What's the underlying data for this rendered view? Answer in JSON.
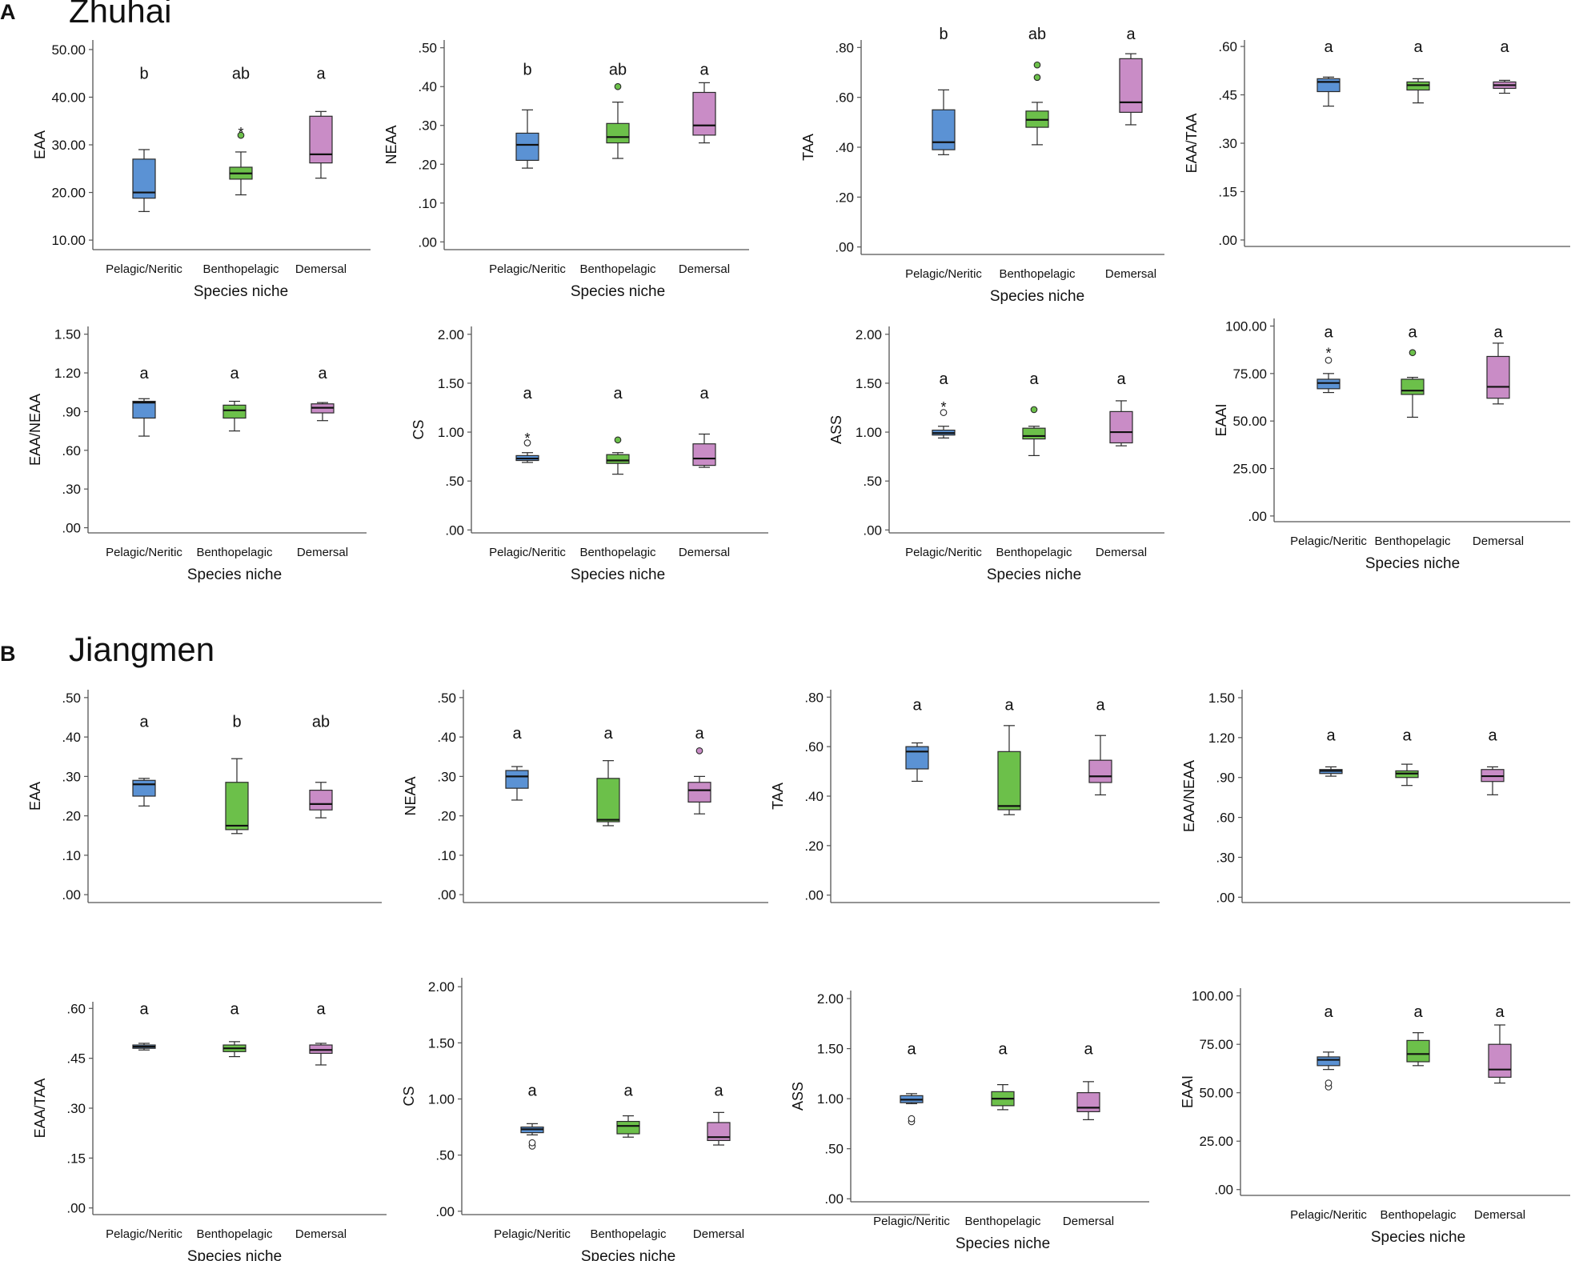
{
  "colors": {
    "pelagic": "#5b92d4",
    "bentho": "#6cc04a",
    "demersal": "#c98cc6",
    "stroke": "#2a2a2a",
    "axis": "#555555"
  },
  "sections": [
    {
      "letter": "A",
      "title": "Zhuhai"
    },
    {
      "letter": "B",
      "title": "Jiangmen"
    }
  ],
  "chart_data": [
    {
      "type": "box",
      "panel": "A",
      "ylabel": "EAA",
      "xlabel": "Species niche",
      "categories": [
        "Pelagic/Neritic",
        "Benthopelagic",
        "Demersal"
      ],
      "yticks": [
        "10.00",
        "20.00",
        "30.00",
        "40.00",
        "50.00"
      ],
      "ylim": [
        8,
        52
      ],
      "boxes": [
        {
          "min": 16,
          "q1": 18.8,
          "median": 20,
          "q3": 27,
          "max": 29,
          "outliers": []
        },
        {
          "min": 19.5,
          "q1": 22.8,
          "median": 24,
          "q3": 25.3,
          "max": 28.5,
          "outliers": [
            {
              "v": 32,
              "m": "o"
            },
            {
              "v": 33,
              "m": "*"
            }
          ]
        },
        {
          "min": 23,
          "q1": 26.2,
          "median": 28,
          "q3": 36,
          "max": 37,
          "outliers": []
        }
      ],
      "letters": [
        "b",
        "ab",
        "a"
      ],
      "sig_y": 45
    },
    {
      "type": "box",
      "panel": "A",
      "ylabel": "NEAA",
      "xlabel": "Species niche",
      "categories": [
        "Pelagic/Neritic",
        "Benthopelagic",
        "Demersal"
      ],
      "yticks": [
        ".00",
        ".10",
        ".20",
        ".30",
        ".40",
        ".50"
      ],
      "ylim": [
        -0.02,
        0.52
      ],
      "boxes": [
        {
          "min": 0.19,
          "q1": 0.21,
          "median": 0.25,
          "q3": 0.28,
          "max": 0.34,
          "outliers": []
        },
        {
          "min": 0.215,
          "q1": 0.255,
          "median": 0.27,
          "q3": 0.305,
          "max": 0.36,
          "outliers": [
            {
              "v": 0.4,
              "m": "o"
            }
          ]
        },
        {
          "min": 0.255,
          "q1": 0.275,
          "median": 0.3,
          "q3": 0.385,
          "max": 0.41,
          "outliers": []
        }
      ],
      "letters": [
        "b",
        "ab",
        "a"
      ],
      "sig_y": 0.445
    },
    {
      "type": "box",
      "panel": "A",
      "ylabel": "TAA",
      "xlabel": "Species niche",
      "categories": [
        "Pelagic/Neritic",
        "Benthopelagic",
        "Demersal"
      ],
      "yticks": [
        ".00",
        ".20",
        ".40",
        ".60",
        ".80"
      ],
      "ylim": [
        -0.03,
        0.83
      ],
      "boxes": [
        {
          "min": 0.37,
          "q1": 0.39,
          "median": 0.42,
          "q3": 0.55,
          "max": 0.63,
          "outliers": []
        },
        {
          "min": 0.41,
          "q1": 0.48,
          "median": 0.51,
          "q3": 0.545,
          "max": 0.58,
          "outliers": [
            {
              "v": 0.68,
              "m": "o"
            },
            {
              "v": 0.73,
              "m": "o"
            }
          ]
        },
        {
          "min": 0.49,
          "q1": 0.54,
          "median": 0.58,
          "q3": 0.755,
          "max": 0.775,
          "outliers": []
        }
      ],
      "letters": [
        "b",
        "ab",
        "a"
      ],
      "sig_y": 0.855
    },
    {
      "type": "box",
      "panel": "A",
      "ylabel": "EAA/TAA",
      "xlabel": "",
      "categories": [
        "",
        "",
        ""
      ],
      "yticks": [
        ".00",
        ".15",
        ".30",
        ".45",
        ".60"
      ],
      "ylim": [
        -0.02,
        0.62
      ],
      "boxes": [
        {
          "min": 0.415,
          "q1": 0.46,
          "median": 0.49,
          "q3": 0.5,
          "max": 0.505,
          "outliers": []
        },
        {
          "min": 0.425,
          "q1": 0.465,
          "median": 0.48,
          "q3": 0.49,
          "max": 0.5,
          "outliers": []
        },
        {
          "min": 0.455,
          "q1": 0.47,
          "median": 0.48,
          "q3": 0.49,
          "max": 0.495,
          "outliers": []
        }
      ],
      "letters": [
        "a",
        "a",
        "a"
      ],
      "sig_y": 0.6
    },
    {
      "type": "box",
      "panel": "A",
      "ylabel": "EAA/NEAA",
      "xlabel": "Species niche",
      "categories": [
        "Pelagic/Neritic",
        "Benthopelagic",
        "Demersal"
      ],
      "yticks": [
        ".00",
        ".30",
        ".60",
        ".90",
        "1.20",
        "1.50"
      ],
      "ylim": [
        -0.04,
        1.56
      ],
      "boxes": [
        {
          "min": 0.71,
          "q1": 0.85,
          "median": 0.97,
          "q3": 0.98,
          "max": 1.0,
          "outliers": []
        },
        {
          "min": 0.75,
          "q1": 0.85,
          "median": 0.91,
          "q3": 0.95,
          "max": 0.98,
          "outliers": []
        },
        {
          "min": 0.83,
          "q1": 0.89,
          "median": 0.93,
          "q3": 0.96,
          "max": 0.97,
          "outliers": []
        }
      ],
      "letters": [
        "a",
        "a",
        "a"
      ],
      "sig_y": 1.2
    },
    {
      "type": "box",
      "panel": "A",
      "ylabel": "CS",
      "xlabel": "Species niche",
      "categories": [
        "Pelagic/Neritic",
        "Benthopelagic",
        "Demersal"
      ],
      "yticks": [
        ".00",
        ".50",
        "1.00",
        "1.50",
        "2.00"
      ],
      "ylim": [
        -0.03,
        2.08
      ],
      "boxes": [
        {
          "min": 0.69,
          "q1": 0.71,
          "median": 0.73,
          "q3": 0.76,
          "max": 0.79,
          "outliers": [
            {
              "v": 0.89,
              "m": "o"
            },
            {
              "v": 0.96,
              "m": "*"
            }
          ]
        },
        {
          "min": 0.57,
          "q1": 0.68,
          "median": 0.71,
          "q3": 0.77,
          "max": 0.79,
          "outliers": [
            {
              "v": 0.92,
              "m": "o"
            }
          ]
        },
        {
          "min": 0.64,
          "q1": 0.66,
          "median": 0.73,
          "q3": 0.88,
          "max": 0.98,
          "outliers": []
        }
      ],
      "letters": [
        "a",
        "a",
        "a"
      ],
      "sig_y": 1.4
    },
    {
      "type": "box",
      "panel": "A",
      "ylabel": "ASS",
      "xlabel": "Species niche",
      "categories": [
        "Pelagic/Neritic",
        "Benthopelagic",
        "Demersal"
      ],
      "yticks": [
        ".00",
        ".50",
        "1.00",
        "1.50",
        "2.00"
      ],
      "ylim": [
        -0.03,
        2.08
      ],
      "boxes": [
        {
          "min": 0.94,
          "q1": 0.97,
          "median": 0.99,
          "q3": 1.02,
          "max": 1.06,
          "outliers": [
            {
              "v": 1.2,
              "m": "o"
            },
            {
              "v": 1.28,
              "m": "*"
            }
          ]
        },
        {
          "min": 0.76,
          "q1": 0.93,
          "median": 0.96,
          "q3": 1.04,
          "max": 1.06,
          "outliers": [
            {
              "v": 1.23,
              "m": "o"
            }
          ]
        },
        {
          "min": 0.86,
          "q1": 0.89,
          "median": 1.0,
          "q3": 1.21,
          "max": 1.32,
          "outliers": []
        }
      ],
      "letters": [
        "a",
        "a",
        "a"
      ],
      "sig_y": 1.55
    },
    {
      "type": "box",
      "panel": "A",
      "ylabel": "EAAI",
      "xlabel": "Species niche",
      "categories": [
        "Pelagic/Neritic",
        "Benthopelagic",
        "Demersal"
      ],
      "yticks": [
        ".00",
        "25.00",
        "50.00",
        "75.00",
        "100.00"
      ],
      "ylim": [
        -3,
        104
      ],
      "boxes": [
        {
          "min": 65,
          "q1": 67,
          "median": 70,
          "q3": 72,
          "max": 75,
          "outliers": [
            {
              "v": 82,
              "m": "o"
            },
            {
              "v": 87,
              "m": "*"
            }
          ]
        },
        {
          "min": 52,
          "q1": 64,
          "median": 66,
          "q3": 72,
          "max": 73,
          "outliers": [
            {
              "v": 86,
              "m": "o"
            }
          ]
        },
        {
          "min": 59,
          "q1": 62,
          "median": 68,
          "q3": 84,
          "max": 91,
          "outliers": []
        }
      ],
      "letters": [
        "a",
        "a",
        "a"
      ],
      "sig_y": 97
    },
    {
      "type": "box",
      "panel": "B",
      "ylabel": "EAA",
      "xlabel": "",
      "categories": [
        "",
        "",
        ""
      ],
      "yticks": [
        ".00",
        ".10",
        ".20",
        ".30",
        ".40",
        ".50"
      ],
      "ylim": [
        -0.02,
        0.52
      ],
      "boxes": [
        {
          "min": 0.225,
          "q1": 0.25,
          "median": 0.28,
          "q3": 0.29,
          "max": 0.295,
          "outliers": []
        },
        {
          "min": 0.155,
          "q1": 0.165,
          "median": 0.175,
          "q3": 0.285,
          "max": 0.345,
          "outliers": []
        },
        {
          "min": 0.195,
          "q1": 0.215,
          "median": 0.23,
          "q3": 0.265,
          "max": 0.285,
          "outliers": []
        }
      ],
      "letters": [
        "a",
        "b",
        "ab"
      ],
      "sig_y": 0.44
    },
    {
      "type": "box",
      "panel": "B",
      "ylabel": "NEAA",
      "xlabel": "",
      "categories": [
        "",
        "",
        ""
      ],
      "yticks": [
        ".00",
        ".10",
        ".20",
        ".30",
        ".40",
        ".50"
      ],
      "ylim": [
        -0.02,
        0.52
      ],
      "boxes": [
        {
          "min": 0.24,
          "q1": 0.27,
          "median": 0.3,
          "q3": 0.315,
          "max": 0.325,
          "outliers": []
        },
        {
          "min": 0.175,
          "q1": 0.185,
          "median": 0.19,
          "q3": 0.295,
          "max": 0.34,
          "outliers": []
        },
        {
          "min": 0.205,
          "q1": 0.235,
          "median": 0.265,
          "q3": 0.285,
          "max": 0.3,
          "outliers": [
            {
              "v": 0.365,
              "m": "o"
            }
          ]
        }
      ],
      "letters": [
        "a",
        "a",
        "a"
      ],
      "sig_y": 0.41
    },
    {
      "type": "box",
      "panel": "B",
      "ylabel": "TAA",
      "xlabel": "",
      "categories": [
        "",
        "",
        ""
      ],
      "yticks": [
        ".00",
        ".20",
        ".40",
        ".60",
        ".80"
      ],
      "ylim": [
        -0.03,
        0.83
      ],
      "boxes": [
        {
          "min": 0.46,
          "q1": 0.51,
          "median": 0.58,
          "q3": 0.6,
          "max": 0.615,
          "outliers": []
        },
        {
          "min": 0.325,
          "q1": 0.345,
          "median": 0.36,
          "q3": 0.58,
          "max": 0.685,
          "outliers": []
        },
        {
          "min": 0.405,
          "q1": 0.455,
          "median": 0.48,
          "q3": 0.545,
          "max": 0.645,
          "outliers": []
        }
      ],
      "letters": [
        "a",
        "a",
        "a"
      ],
      "sig_y": 0.77
    },
    {
      "type": "box",
      "panel": "B",
      "ylabel": "EAA/NEAA",
      "xlabel": "",
      "categories": [
        "",
        "",
        ""
      ],
      "yticks": [
        ".00",
        ".30",
        ".60",
        ".90",
        "1.20",
        "1.50"
      ],
      "ylim": [
        -0.04,
        1.56
      ],
      "boxes": [
        {
          "min": 0.91,
          "q1": 0.93,
          "median": 0.95,
          "q3": 0.96,
          "max": 0.98,
          "outliers": []
        },
        {
          "min": 0.84,
          "q1": 0.9,
          "median": 0.93,
          "q3": 0.95,
          "max": 1.0,
          "outliers": []
        },
        {
          "min": 0.77,
          "q1": 0.87,
          "median": 0.91,
          "q3": 0.96,
          "max": 0.98,
          "outliers": []
        }
      ],
      "letters": [
        "a",
        "a",
        "a"
      ],
      "sig_y": 1.22
    },
    {
      "type": "box",
      "panel": "B",
      "ylabel": "EAA/TAA",
      "xlabel": "Species niche",
      "categories": [
        "Pelagic/Neritic",
        "Benthopelagic",
        "Demersal"
      ],
      "yticks": [
        ".00",
        ".15",
        ".30",
        ".45",
        ".60"
      ],
      "ylim": [
        -0.02,
        0.62
      ],
      "boxes": [
        {
          "min": 0.475,
          "q1": 0.48,
          "median": 0.485,
          "q3": 0.49,
          "max": 0.495,
          "outliers": []
        },
        {
          "min": 0.455,
          "q1": 0.47,
          "median": 0.48,
          "q3": 0.49,
          "max": 0.5,
          "outliers": []
        },
        {
          "min": 0.43,
          "q1": 0.465,
          "median": 0.475,
          "q3": 0.49,
          "max": 0.495,
          "outliers": []
        }
      ],
      "letters": [
        "a",
        "a",
        "a"
      ],
      "sig_y": 0.6
    },
    {
      "type": "box",
      "panel": "B",
      "ylabel": "CS",
      "xlabel": "Species niche",
      "categories": [
        "Pelagic/Neritic",
        "Benthopelagic",
        "Demersal"
      ],
      "yticks": [
        ".00",
        ".50",
        "1.00",
        "1.50",
        "2.00"
      ],
      "ylim": [
        -0.03,
        2.08
      ],
      "boxes": [
        {
          "min": 0.68,
          "q1": 0.7,
          "median": 0.73,
          "q3": 0.75,
          "max": 0.78,
          "outliers": [
            {
              "v": 0.58,
              "m": "o"
            },
            {
              "v": 0.61,
              "m": "o"
            }
          ]
        },
        {
          "min": 0.66,
          "q1": 0.69,
          "median": 0.76,
          "q3": 0.8,
          "max": 0.85,
          "outliers": []
        },
        {
          "min": 0.59,
          "q1": 0.63,
          "median": 0.66,
          "q3": 0.79,
          "max": 0.88,
          "outliers": []
        }
      ],
      "letters": [
        "a",
        "a",
        "a"
      ],
      "sig_y": 1.08
    },
    {
      "type": "box",
      "panel": "B",
      "ylabel": "ASS",
      "xlabel": "Species niche",
      "categories": [
        "Pelagic/Neritic",
        "Benthopelagic",
        "Demersal"
      ],
      "yticks": [
        ".00",
        ".50",
        "1.00",
        "1.50",
        "2.00"
      ],
      "ylim": [
        -0.03,
        2.08
      ],
      "boxes": [
        {
          "min": 0.95,
          "q1": 0.96,
          "median": 0.99,
          "q3": 1.03,
          "max": 1.05,
          "outliers": [
            {
              "v": 0.77,
              "m": "o"
            },
            {
              "v": 0.8,
              "m": "o"
            }
          ]
        },
        {
          "min": 0.89,
          "q1": 0.93,
          "median": 1.0,
          "q3": 1.07,
          "max": 1.14,
          "outliers": []
        },
        {
          "min": 0.79,
          "q1": 0.87,
          "median": 0.91,
          "q3": 1.06,
          "max": 1.17,
          "outliers": []
        }
      ],
      "letters": [
        "a",
        "a",
        "a"
      ],
      "sig_y": 1.5
    },
    {
      "type": "box",
      "panel": "B",
      "ylabel": "EAAI",
      "xlabel": "Species niche",
      "categories": [
        "Pelagic/Neritic",
        "Benthopelagic",
        "Demersal"
      ],
      "yticks": [
        ".00",
        "25.00",
        "50.00",
        "75.00",
        "100.00"
      ],
      "ylim": [
        -3,
        104
      ],
      "boxes": [
        {
          "min": 62,
          "q1": 64,
          "median": 67,
          "q3": 68.5,
          "max": 71,
          "outliers": [
            {
              "v": 53,
              "m": "o"
            },
            {
              "v": 55,
              "m": "o"
            }
          ]
        },
        {
          "min": 64,
          "q1": 66,
          "median": 70,
          "q3": 77,
          "max": 81,
          "outliers": []
        },
        {
          "min": 55,
          "q1": 58,
          "median": 62,
          "q3": 75,
          "max": 85,
          "outliers": []
        }
      ],
      "letters": [
        "a",
        "a",
        "a"
      ],
      "sig_y": 92
    }
  ]
}
